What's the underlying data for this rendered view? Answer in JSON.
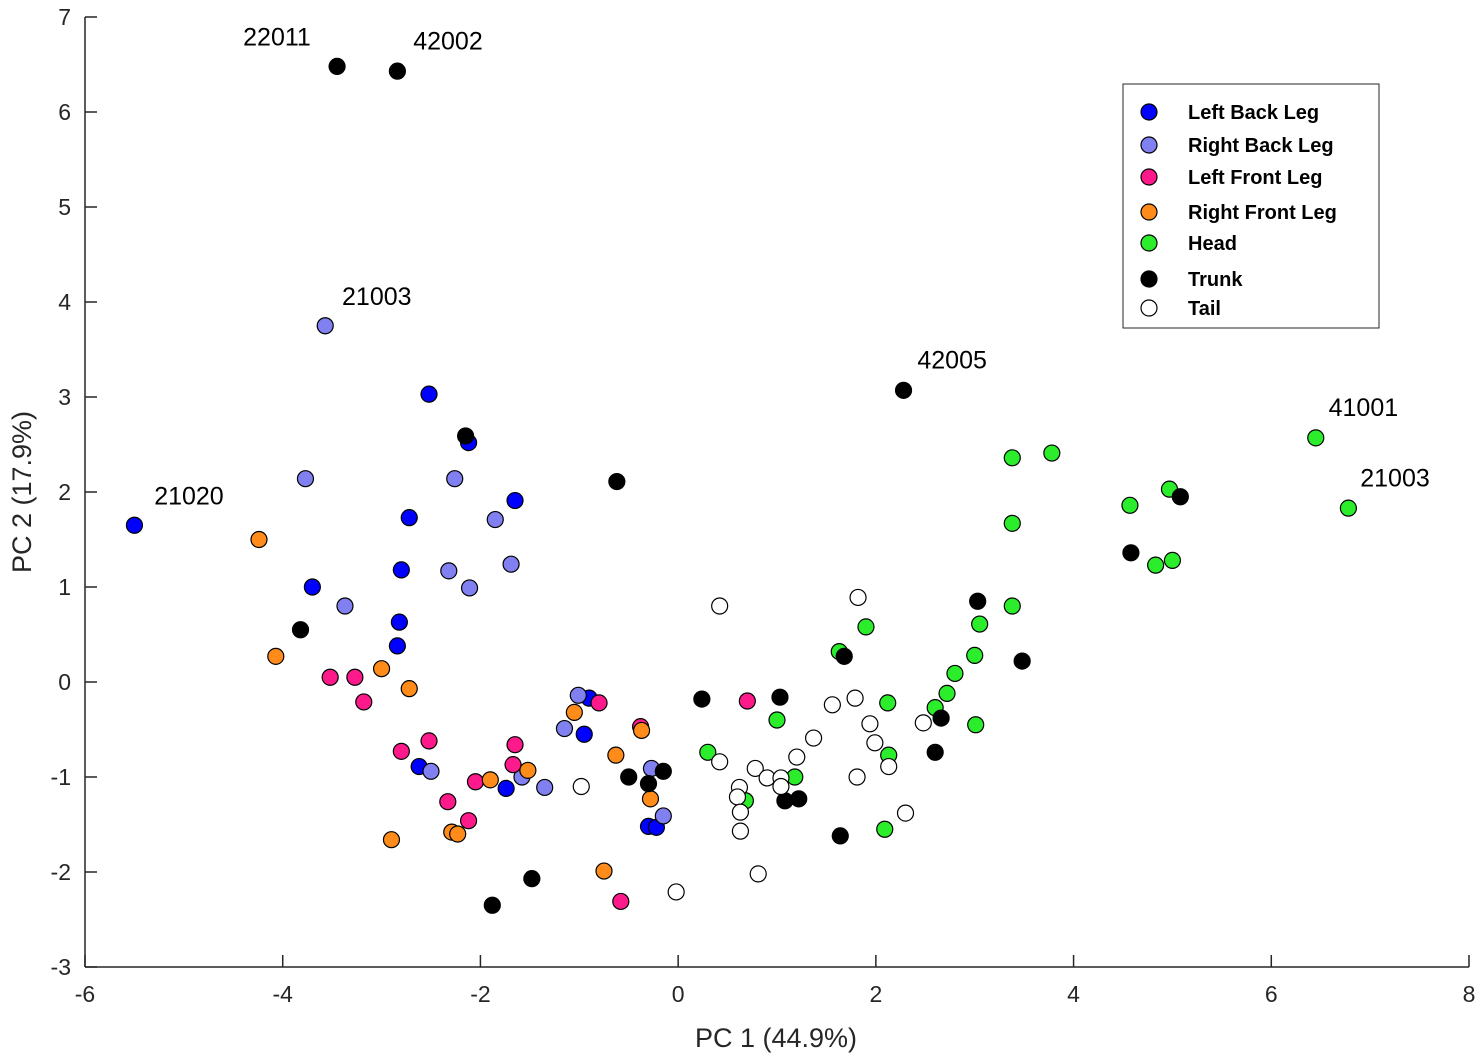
{
  "chart_data": {
    "type": "scatter",
    "title": "",
    "xlabel": "PC 1 (44.9%)",
    "ylabel": "PC 2 (17.9%)",
    "xlim": [
      -6,
      8
    ],
    "ylim": [
      -3,
      7
    ],
    "xticks": [
      "-6",
      "-4",
      "-2",
      "0",
      "2",
      "4",
      "6",
      "8"
    ],
    "yticks": [
      "-3",
      "-2",
      "-1",
      "0",
      "1",
      "2",
      "3",
      "4",
      "5",
      "6",
      "7"
    ],
    "grid": false,
    "legend_position": "top-right",
    "series": [
      {
        "name": "Left Back Leg",
        "color": "#0000ff",
        "points": [
          [
            -5.5,
            1.65
          ],
          [
            -2.52,
            3.03
          ],
          [
            -2.12,
            2.52
          ],
          [
            -1.65,
            1.91
          ],
          [
            -2.72,
            1.73
          ],
          [
            -3.7,
            1.0
          ],
          [
            -2.8,
            1.18
          ],
          [
            -2.82,
            0.63
          ],
          [
            -2.84,
            0.38
          ],
          [
            -2.62,
            -0.89
          ],
          [
            -1.74,
            -1.12
          ],
          [
            -0.95,
            -0.55
          ],
          [
            -0.9,
            -0.17
          ],
          [
            -0.3,
            -1.52
          ],
          [
            -0.22,
            -1.53
          ]
        ]
      },
      {
        "name": "Right Back Leg",
        "color": "#8080f0",
        "points": [
          [
            -3.57,
            3.75
          ],
          [
            -3.77,
            2.14
          ],
          [
            -2.26,
            2.14
          ],
          [
            -1.85,
            1.71
          ],
          [
            -2.32,
            1.17
          ],
          [
            -1.69,
            1.24
          ],
          [
            -2.11,
            0.99
          ],
          [
            -3.37,
            0.8
          ],
          [
            -2.5,
            -0.94
          ],
          [
            -1.58,
            -1.0
          ],
          [
            -1.35,
            -1.11
          ],
          [
            -1.15,
            -0.49
          ],
          [
            -1.01,
            -0.14
          ],
          [
            -0.27,
            -0.91
          ],
          [
            -0.15,
            -1.41
          ]
        ]
      },
      {
        "name": "Left Front Leg",
        "color": "#ff1a8c",
        "points": [
          [
            -3.52,
            0.05
          ],
          [
            -3.27,
            0.05
          ],
          [
            -3.18,
            -0.21
          ],
          [
            -2.8,
            -0.73
          ],
          [
            -2.52,
            -0.62
          ],
          [
            -2.33,
            -1.26
          ],
          [
            -2.12,
            -1.46
          ],
          [
            -2.05,
            -1.05
          ],
          [
            -1.65,
            -0.66
          ],
          [
            -1.67,
            -0.87
          ],
          [
            -0.8,
            -0.22
          ],
          [
            -0.38,
            -0.47
          ],
          [
            0.7,
            -0.2
          ],
          [
            -0.58,
            -2.31
          ]
        ]
      },
      {
        "name": "Right Front Leg",
        "color": "#ff8c1a",
        "points": [
          [
            -4.24,
            1.5
          ],
          [
            -4.07,
            0.27
          ],
          [
            -3.0,
            0.14
          ],
          [
            -2.72,
            -0.07
          ],
          [
            -2.9,
            -1.66
          ],
          [
            -2.29,
            -1.58
          ],
          [
            -2.23,
            -1.6
          ],
          [
            -1.9,
            -1.03
          ],
          [
            -1.52,
            -0.93
          ],
          [
            -1.05,
            -0.32
          ],
          [
            -0.63,
            -0.77
          ],
          [
            -0.37,
            -0.51
          ],
          [
            -0.28,
            -1.23
          ],
          [
            -0.75,
            -1.99
          ]
        ]
      },
      {
        "name": "Head",
        "color": "#2bed2b",
        "points": [
          [
            3.38,
            2.36
          ],
          [
            3.78,
            2.41
          ],
          [
            3.38,
            1.67
          ],
          [
            4.57,
            1.86
          ],
          [
            4.97,
            2.03
          ],
          [
            4.83,
            1.23
          ],
          [
            5.0,
            1.28
          ],
          [
            6.45,
            2.57
          ],
          [
            6.78,
            1.83
          ],
          [
            3.38,
            0.8
          ],
          [
            3.05,
            0.61
          ],
          [
            3.0,
            0.28
          ],
          [
            2.8,
            0.09
          ],
          [
            2.72,
            -0.12
          ],
          [
            2.6,
            -0.27
          ],
          [
            3.01,
            -0.45
          ],
          [
            1.63,
            0.32
          ],
          [
            1.9,
            0.58
          ],
          [
            2.12,
            -0.22
          ],
          [
            1.0,
            -0.4
          ],
          [
            0.3,
            -0.74
          ],
          [
            0.68,
            -1.25
          ],
          [
            1.18,
            -1.0
          ],
          [
            2.13,
            -0.77
          ],
          [
            2.09,
            -1.55
          ]
        ]
      },
      {
        "name": "Trunk",
        "color": "#000000",
        "points": [
          [
            -3.45,
            6.48
          ],
          [
            -2.84,
            6.43
          ],
          [
            2.28,
            3.07
          ],
          [
            -2.15,
            2.59
          ],
          [
            -0.62,
            2.11
          ],
          [
            5.08,
            1.95
          ],
          [
            4.58,
            1.36
          ],
          [
            -3.82,
            0.55
          ],
          [
            3.03,
            0.85
          ],
          [
            3.48,
            0.22
          ],
          [
            1.68,
            0.27
          ],
          [
            0.24,
            -0.18
          ],
          [
            1.03,
            -0.16
          ],
          [
            2.66,
            -0.38
          ],
          [
            2.6,
            -0.74
          ],
          [
            -0.5,
            -1.0
          ],
          [
            -0.3,
            -1.07
          ],
          [
            -0.15,
            -0.94
          ],
          [
            1.08,
            -1.25
          ],
          [
            1.22,
            -1.23
          ],
          [
            1.64,
            -1.62
          ],
          [
            -1.48,
            -2.07
          ],
          [
            -1.88,
            -2.35
          ]
        ]
      },
      {
        "name": "Tail",
        "color": "#ffffff",
        "points": [
          [
            0.42,
            0.8
          ],
          [
            1.82,
            0.89
          ],
          [
            1.56,
            -0.24
          ],
          [
            1.79,
            -0.17
          ],
          [
            1.94,
            -0.44
          ],
          [
            1.37,
            -0.59
          ],
          [
            1.99,
            -0.64
          ],
          [
            2.48,
            -0.43
          ],
          [
            1.2,
            -0.79
          ],
          [
            0.42,
            -0.84
          ],
          [
            0.78,
            -0.91
          ],
          [
            0.9,
            -1.01
          ],
          [
            0.62,
            -1.11
          ],
          [
            1.04,
            -1.01
          ],
          [
            1.04,
            -1.1
          ],
          [
            1.81,
            -1.0
          ],
          [
            2.13,
            -0.89
          ],
          [
            0.6,
            -1.21
          ],
          [
            0.63,
            -1.37
          ],
          [
            0.63,
            -1.57
          ],
          [
            2.3,
            -1.38
          ],
          [
            0.81,
            -2.02
          ],
          [
            -0.98,
            -1.1
          ],
          [
            -0.02,
            -2.21
          ]
        ]
      }
    ],
    "annotations": [
      {
        "text": "22011",
        "x": -4.4,
        "y": 6.7
      },
      {
        "text": "42002",
        "x": -2.68,
        "y": 6.66
      },
      {
        "text": "21003",
        "x": -3.4,
        "y": 3.97
      },
      {
        "text": "42005",
        "x": 2.42,
        "y": 3.3
      },
      {
        "text": "21020",
        "x": -5.3,
        "y": 1.87
      },
      {
        "text": "41001",
        "x": 6.58,
        "y": 2.8
      },
      {
        "text": "21003",
        "x": 6.9,
        "y": 2.06
      }
    ]
  }
}
